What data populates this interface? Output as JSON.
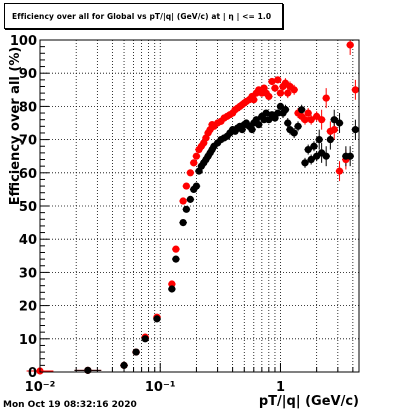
{
  "title": "Efficiency over all for Global vs pT/|q| (GeV/c) at | η | <= 1.0",
  "timestamp": "Mon Oct 19 08:32:16 2020",
  "chart_data": {
    "type": "scatter",
    "title": "Efficiency over all for Global vs pT/|q| (GeV/c) at | η | <= 1.0",
    "xlabel": "pT/|q| (GeV/c)",
    "ylabel": "Efficiency over all (%)",
    "xscale": "log",
    "xlim": [
      0.01,
      4.5
    ],
    "ylim": [
      0,
      100
    ],
    "grid": true,
    "x_tick_labels": [
      "10⁻²",
      "10⁻¹",
      "1"
    ],
    "y_tick_labels": [
      "0",
      "10",
      "20",
      "30",
      "40",
      "50",
      "60",
      "70",
      "80",
      "90",
      "100"
    ],
    "colors": {
      "series_red": "#ff0000",
      "series_black": "#000000",
      "axes": "#000000",
      "grid": "#000000"
    },
    "series": [
      {
        "color": "#ff0000",
        "x": [
          0.01,
          0.025,
          0.05,
          0.063,
          0.075,
          0.094,
          0.125,
          0.135,
          0.155,
          0.165,
          0.178,
          0.19,
          0.2,
          0.21,
          0.22,
          0.23,
          0.24,
          0.25,
          0.26,
          0.27,
          0.28,
          0.3,
          0.32,
          0.34,
          0.36,
          0.38,
          0.4,
          0.42,
          0.44,
          0.46,
          0.48,
          0.5,
          0.52,
          0.55,
          0.58,
          0.6,
          0.63,
          0.66,
          0.7,
          0.73,
          0.76,
          0.8,
          0.85,
          0.9,
          0.95,
          1.0,
          1.05,
          1.1,
          1.15,
          1.2,
          1.3,
          1.4,
          1.5,
          1.6,
          1.7,
          1.8,
          2.0,
          2.2,
          2.4,
          2.6,
          2.8,
          3.1,
          3.5,
          3.8,
          4.2,
          4.6
        ],
        "y": [
          0.3,
          0.5,
          2.0,
          6.0,
          10.5,
          16.5,
          26.5,
          37.0,
          51.5,
          56.0,
          60.0,
          63.0,
          65.0,
          67.0,
          68.0,
          69.0,
          70.5,
          72.0,
          73.0,
          74.5,
          74.0,
          75.0,
          75.5,
          76.5,
          77.0,
          77.5,
          78.0,
          79.0,
          79.5,
          80.0,
          80.5,
          81.0,
          81.5,
          82.0,
          83.0,
          82.0,
          84.0,
          85.0,
          84.0,
          85.5,
          84.0,
          83.0,
          87.5,
          85.5,
          88.0,
          84.0,
          86.0,
          87.0,
          84.0,
          86.0,
          85.0,
          78.0,
          77.0,
          76.0,
          78.0,
          76.0,
          77.0,
          76.0,
          82.5,
          72.5,
          73.0,
          60.5,
          64.0,
          98.5,
          85.0,
          73.0
        ]
      },
      {
        "color": "#000000",
        "x": [
          0.025,
          0.05,
          0.063,
          0.075,
          0.094,
          0.125,
          0.135,
          0.155,
          0.165,
          0.178,
          0.19,
          0.2,
          0.21,
          0.22,
          0.23,
          0.24,
          0.25,
          0.26,
          0.27,
          0.28,
          0.3,
          0.32,
          0.34,
          0.36,
          0.38,
          0.4,
          0.42,
          0.44,
          0.46,
          0.48,
          0.5,
          0.52,
          0.55,
          0.58,
          0.6,
          0.63,
          0.66,
          0.7,
          0.73,
          0.76,
          0.8,
          0.85,
          0.9,
          0.95,
          1.0,
          1.05,
          1.1,
          1.15,
          1.2,
          1.3,
          1.4,
          1.5,
          1.6,
          1.7,
          1.8,
          1.9,
          2.0,
          2.1,
          2.2,
          2.4,
          2.6,
          2.8,
          3.1,
          3.5,
          3.8,
          4.2,
          4.6
        ],
        "y": [
          0.5,
          2.0,
          6.0,
          10.0,
          16.0,
          25.0,
          34.0,
          45.0,
          49.0,
          52.0,
          55.0,
          56.0,
          60.5,
          62.0,
          63.0,
          64.0,
          65.0,
          66.0,
          67.0,
          68.0,
          69.0,
          70.0,
          70.5,
          71.0,
          72.0,
          73.0,
          72.5,
          73.5,
          74.0,
          73.0,
          74.5,
          75.0,
          74.0,
          73.0,
          75.0,
          76.0,
          74.5,
          77.0,
          76.0,
          78.0,
          76.0,
          77.5,
          76.5,
          78.0,
          80.0,
          78.0,
          79.0,
          75.0,
          73.0,
          72.0,
          74.0,
          79.0,
          63.0,
          67.0,
          64.0,
          68.0,
          65.0,
          70.0,
          66.0,
          65.0,
          70.0,
          76.0,
          75.0,
          65.0,
          65.0,
          73.0,
          70.5
        ]
      }
    ]
  }
}
